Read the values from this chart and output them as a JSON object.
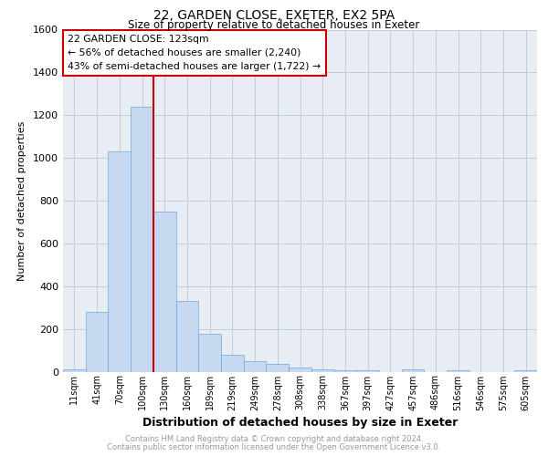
{
  "title_line1": "22, GARDEN CLOSE, EXETER, EX2 5PA",
  "title_line2": "Size of property relative to detached houses in Exeter",
  "xlabel": "Distribution of detached houses by size in Exeter",
  "ylabel": "Number of detached properties",
  "footnote_line1": "Contains HM Land Registry data © Crown copyright and database right 2024.",
  "footnote_line2": "Contains public sector information licensed under the Open Government Licence v3.0.",
  "bar_labels": [
    "11sqm",
    "41sqm",
    "70sqm",
    "100sqm",
    "130sqm",
    "160sqm",
    "189sqm",
    "219sqm",
    "249sqm",
    "278sqm",
    "308sqm",
    "338sqm",
    "367sqm",
    "397sqm",
    "427sqm",
    "457sqm",
    "486sqm",
    "516sqm",
    "546sqm",
    "575sqm",
    "605sqm"
  ],
  "bar_values": [
    10,
    280,
    1030,
    1240,
    750,
    330,
    175,
    80,
    50,
    35,
    20,
    10,
    5,
    5,
    0,
    12,
    0,
    5,
    0,
    0,
    5
  ],
  "bar_color": "#c6d9f1",
  "bar_edge_color": "#7fb0e0",
  "property_label": "22 GARDEN CLOSE: 123sqm",
  "annotation_line1": "← 56% of detached houses are smaller (2,240)",
  "annotation_line2": "43% of semi-detached houses are larger (1,722) →",
  "vline_color": "#cc0000",
  "vline_x": 3.5,
  "annotation_box_facecolor": "#ffffff",
  "annotation_box_edgecolor": "#cc0000",
  "ylim": [
    0,
    1600
  ],
  "yticks": [
    0,
    200,
    400,
    600,
    800,
    1000,
    1200,
    1400,
    1600
  ],
  "grid_color": "#c0ccd8",
  "bg_color": "#e8edf4"
}
